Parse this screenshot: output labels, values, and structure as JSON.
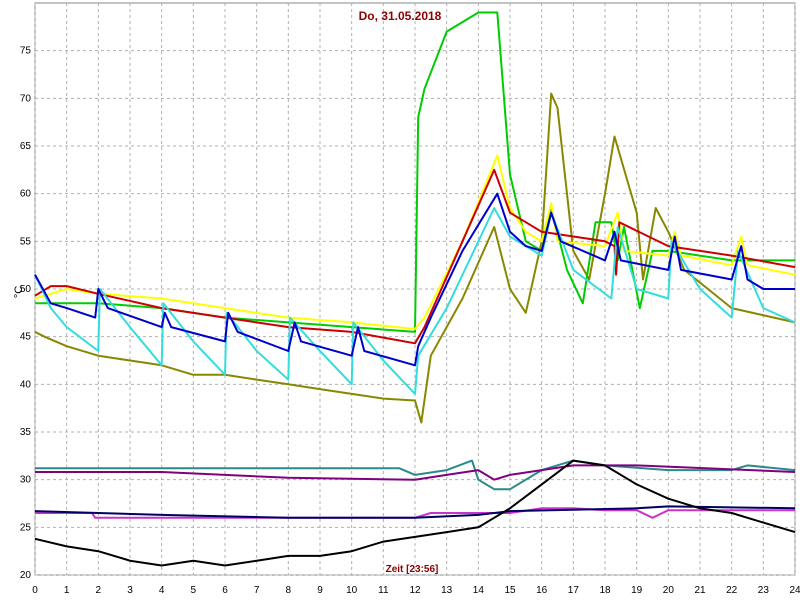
{
  "chart_data": {
    "type": "line",
    "title": "Do, 31.05.2018",
    "x_label": "Zeit [23:56]",
    "y_label": "°C",
    "xlim": [
      0,
      24
    ],
    "ylim": [
      20,
      80
    ],
    "xticks": [
      0,
      1,
      2,
      3,
      4,
      5,
      6,
      7,
      8,
      9,
      10,
      11,
      12,
      13,
      14,
      15,
      16,
      17,
      18,
      19,
      20,
      21,
      22,
      23,
      24
    ],
    "yticks": [
      20,
      25,
      30,
      35,
      40,
      45,
      50,
      55,
      60,
      65,
      70,
      75
    ],
    "grid": true,
    "series": [
      {
        "color": "#2a8a8a",
        "x": [
          0,
          11.5,
          12,
          13,
          13.8,
          14,
          14.5,
          15,
          16,
          17,
          18,
          20,
          22,
          22.5,
          24
        ],
        "values": [
          31.2,
          31.2,
          30.5,
          31,
          32,
          30,
          29,
          29,
          31,
          32,
          31.5,
          31,
          31,
          31.5,
          31
        ]
      },
      {
        "color": "#800080",
        "x": [
          0,
          4,
          8,
          12,
          13,
          14,
          14.5,
          15,
          17,
          19,
          24
        ],
        "values": [
          30.8,
          30.8,
          30.2,
          30,
          30.5,
          31,
          30,
          30.5,
          31.5,
          31.5,
          30.8
        ]
      },
      {
        "color": "#cc33cc",
        "x": [
          0,
          1.8,
          1.9,
          12,
          12.5,
          15,
          16,
          17,
          18,
          19,
          19.5,
          20,
          24
        ],
        "values": [
          26.5,
          26.5,
          26,
          26,
          26.5,
          26.5,
          27,
          27,
          26.8,
          26.8,
          26,
          26.8,
          26.8
        ]
      },
      {
        "color": "#000066",
        "x": [
          0,
          4,
          8,
          12,
          14,
          15,
          19,
          20,
          24
        ],
        "values": [
          26.7,
          26.3,
          26,
          26,
          26.3,
          26.7,
          27,
          27.2,
          27
        ]
      },
      {
        "color": "#000000",
        "x": [
          0,
          1,
          2,
          3,
          4,
          5,
          6,
          7,
          8,
          9,
          10,
          11,
          12,
          13,
          14,
          15,
          16,
          17,
          18,
          19,
          20,
          21,
          22,
          23,
          24
        ],
        "values": [
          23.8,
          23,
          22.5,
          21.5,
          21,
          21.5,
          21,
          21.5,
          22,
          22,
          22.5,
          23.5,
          24,
          24.5,
          25,
          27,
          29.5,
          32,
          31.5,
          29.5,
          28,
          27,
          26.5,
          25.5,
          24.5
        ]
      },
      {
        "color": "#888800",
        "x": [
          0,
          0.3,
          1,
          2,
          3,
          4,
          5,
          6,
          7,
          8,
          9,
          10,
          11,
          12,
          12.2,
          12.5,
          13.5,
          14.5,
          15,
          15.5,
          16,
          16.3,
          16.5,
          17,
          17.5,
          18,
          18.3,
          19,
          19.2,
          19.6,
          20,
          20.5,
          22,
          24
        ],
        "values": [
          45.5,
          45,
          44,
          43,
          42.5,
          42,
          41,
          41,
          40.5,
          40,
          39.5,
          39,
          38.5,
          38.3,
          36,
          43,
          49,
          56.5,
          50,
          47.5,
          55,
          70.5,
          69,
          54,
          51,
          60,
          66,
          58,
          51,
          58.5,
          56,
          52,
          48,
          46.5
        ]
      },
      {
        "color": "#00cc00",
        "x": [
          0,
          2,
          4,
          6,
          8,
          10,
          12,
          12.1,
          12.3,
          13,
          14,
          14.6,
          15,
          15.5,
          16,
          16.3,
          16.8,
          17.3,
          17.7,
          18.2,
          18.4,
          18.6,
          19.1,
          19.5,
          20,
          22,
          24
        ],
        "values": [
          48.5,
          48.5,
          48,
          47,
          46.5,
          46,
          45.5,
          68,
          71,
          77,
          79,
          79,
          62,
          55,
          54,
          58.5,
          52,
          48.5,
          57,
          57,
          53,
          56.5,
          48,
          54,
          54,
          53,
          53
        ]
      },
      {
        "color": "#ffff00",
        "x": [
          0,
          1,
          2,
          4,
          6,
          8,
          10,
          12,
          12.3,
          13.5,
          14.6,
          15,
          15.5,
          16,
          16.3,
          16.5,
          18,
          18.4,
          18.6,
          20,
          20.2,
          20.4,
          22,
          22.3,
          22.5,
          24
        ],
        "values": [
          49,
          50,
          49.5,
          49,
          48,
          47,
          46.5,
          45.8,
          47,
          55,
          64,
          58.5,
          56,
          55,
          59,
          55,
          54.5,
          58,
          54,
          53.5,
          56,
          53.5,
          52.5,
          55.5,
          52.5,
          51.5
        ]
      },
      {
        "color": "#cc0000",
        "x": [
          0,
          0.5,
          1,
          2,
          4,
          6,
          8,
          10,
          12,
          12.3,
          13.5,
          14.5,
          15,
          16,
          18,
          18.3,
          18.35,
          18.45,
          20,
          22,
          24
        ],
        "values": [
          49.3,
          50.3,
          50.3,
          49.5,
          48,
          47,
          46,
          45.5,
          44.3,
          46,
          55,
          62.5,
          58,
          56,
          55,
          54.5,
          51.5,
          57,
          54.5,
          53.5,
          52.3
        ]
      },
      {
        "color": "#33dddd",
        "x": [
          0,
          0.5,
          1,
          2,
          2.05,
          3,
          4,
          4.05,
          5,
          6,
          6.05,
          7,
          8,
          8.05,
          9,
          10,
          10.05,
          11,
          12,
          12.1,
          13,
          14.5,
          15,
          15.5,
          16,
          16.3,
          17,
          18.2,
          18.4,
          19,
          20,
          20.1,
          21,
          22,
          22.2,
          23,
          24
        ],
        "values": [
          51.5,
          48,
          46,
          43.5,
          50,
          46,
          42,
          48.5,
          44.5,
          41,
          47.5,
          43.5,
          40.5,
          47,
          43.5,
          40,
          46.5,
          42.5,
          39,
          43,
          48,
          58.5,
          55.5,
          54.5,
          53.5,
          58,
          52,
          49,
          56.5,
          50,
          49,
          55,
          50,
          47,
          54,
          48,
          46.5
        ]
      },
      {
        "color": "#0000cc",
        "x": [
          0,
          0.5,
          1,
          1.9,
          2,
          2.3,
          4,
          4.1,
          4.3,
          6,
          6.1,
          6.4,
          8,
          8.2,
          8.4,
          10,
          10.2,
          10.4,
          12,
          12.1,
          12.5,
          13.5,
          14.6,
          15,
          15.5,
          16,
          16.3,
          16.6,
          18,
          18.3,
          18.5,
          20,
          20.2,
          20.4,
          22,
          22.3,
          22.5,
          23,
          24
        ],
        "values": [
          51.5,
          48.5,
          48,
          47,
          50,
          48,
          46,
          47.5,
          46,
          44.5,
          47.5,
          45.5,
          43.5,
          46.5,
          44.5,
          43,
          46,
          43.5,
          42,
          44,
          47,
          54,
          60,
          56,
          54.5,
          54,
          58,
          55,
          53,
          56,
          53,
          52,
          55.5,
          52,
          51,
          54.5,
          51,
          50,
          50
        ]
      }
    ]
  }
}
